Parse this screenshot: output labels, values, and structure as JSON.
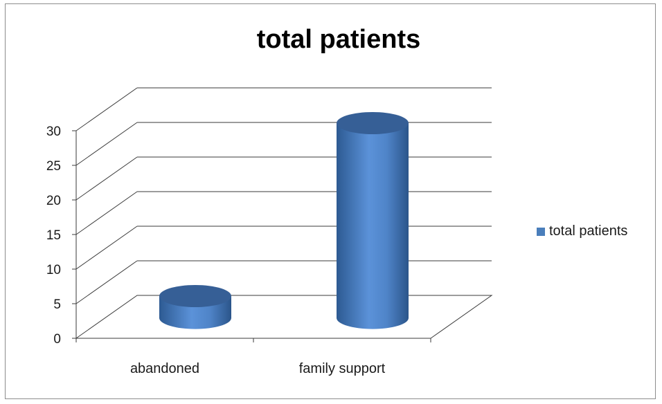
{
  "chart_data": {
    "type": "bar",
    "style": "3d-cylinder",
    "title": "total patients",
    "categories": [
      "abandoned",
      "family support"
    ],
    "series": [
      {
        "name": "total patients",
        "values": [
          3,
          28
        ],
        "color": "#4a7ebb"
      }
    ],
    "ylim": [
      0,
      30
    ],
    "yticks": [
      "0",
      "5",
      "10",
      "15",
      "20",
      "25",
      "30"
    ],
    "grid": true,
    "legend": "right"
  }
}
